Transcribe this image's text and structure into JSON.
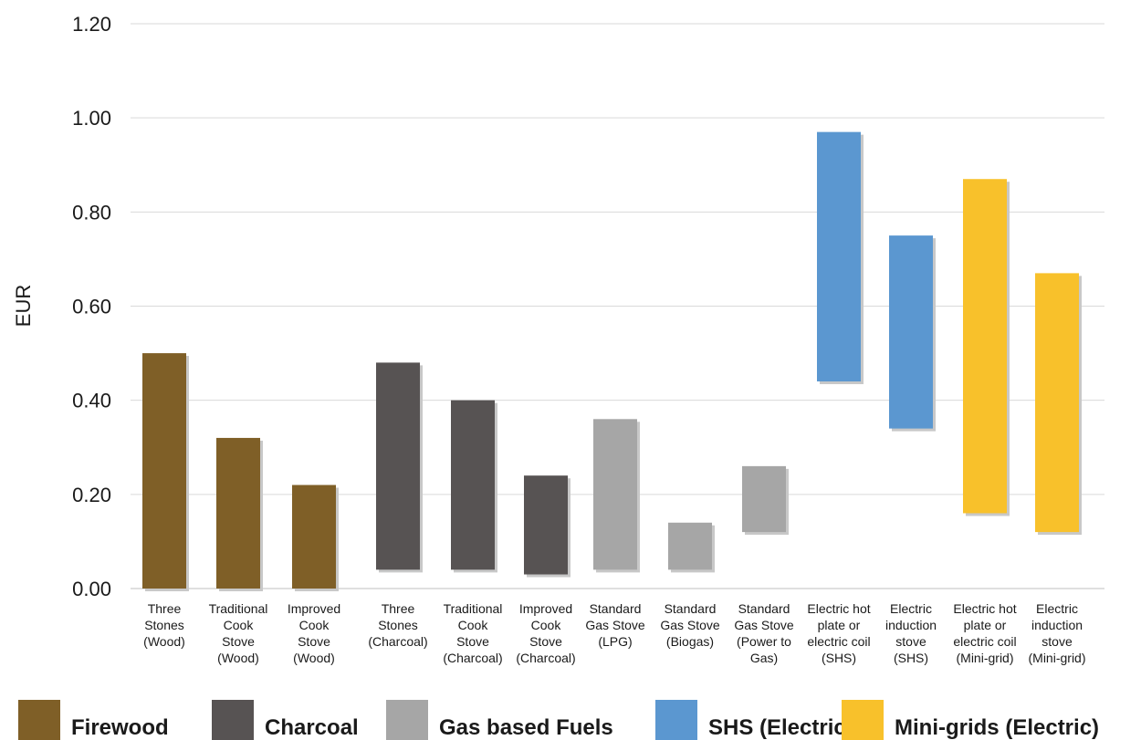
{
  "chart_data": {
    "type": "bar",
    "title": "",
    "xlabel": "",
    "ylabel": "EUR",
    "ylim": [
      0,
      1.2
    ],
    "yticks": [
      "0.00",
      "0.20",
      "0.40",
      "0.60",
      "0.80",
      "1.00",
      "1.20"
    ],
    "grid": true,
    "legend_placement": "bottom",
    "categories": [
      [
        "Three",
        "Stones",
        "(Wood)"
      ],
      [
        "Traditional",
        "Cook",
        "Stove",
        "(Wood)"
      ],
      [
        "Improved",
        "Cook",
        "Stove",
        "(Wood)"
      ],
      [
        "Three",
        "Stones",
        "(Charcoal)"
      ],
      [
        "Traditional",
        "Cook",
        "Stove",
        "(Charcoal)"
      ],
      [
        "Improved",
        "Cook",
        "Stove",
        "(Charcoal)"
      ],
      [
        "Standard",
        "Gas Stove",
        "(LPG)"
      ],
      [
        "Standard",
        "Gas Stove",
        "(Biogas)"
      ],
      [
        "Standard",
        "Gas Stove",
        "(Power to",
        "Gas)"
      ],
      [
        "Electric hot",
        "plate or",
        "electric coil",
        "(SHS)"
      ],
      [
        "Electric",
        "induction",
        "stove",
        "(SHS)"
      ],
      [
        "Electric hot",
        "plate or",
        "electric coil",
        "(Mini-grid)"
      ],
      [
        "Electric",
        "induction",
        "stove",
        "(Mini-grid)"
      ]
    ],
    "ranges": [
      {
        "low": 0.0,
        "high": 0.5,
        "group": 0
      },
      {
        "low": 0.0,
        "high": 0.32,
        "group": 0
      },
      {
        "low": 0.0,
        "high": 0.22,
        "group": 0
      },
      {
        "low": 0.04,
        "high": 0.48,
        "group": 1
      },
      {
        "low": 0.04,
        "high": 0.4,
        "group": 1
      },
      {
        "low": 0.03,
        "high": 0.24,
        "group": 1
      },
      {
        "low": 0.04,
        "high": 0.36,
        "group": 2
      },
      {
        "low": 0.04,
        "high": 0.14,
        "group": 2
      },
      {
        "low": 0.12,
        "high": 0.26,
        "group": 2
      },
      {
        "low": 0.44,
        "high": 0.97,
        "group": 3
      },
      {
        "low": 0.34,
        "high": 0.75,
        "group": 3
      },
      {
        "low": 0.16,
        "high": 0.87,
        "group": 4
      },
      {
        "low": 0.12,
        "high": 0.67,
        "group": 4
      }
    ],
    "legend": [
      {
        "label": "Firewood",
        "color": "#7f5f27"
      },
      {
        "label": "Charcoal",
        "color": "#575353"
      },
      {
        "label": "Gas based Fuels",
        "color": "#a6a6a6"
      },
      {
        "label": "SHS (Electric)",
        "color": "#5b97d0"
      },
      {
        "label": "Mini-grids (Electric)",
        "color": "#f8c12b"
      }
    ]
  }
}
